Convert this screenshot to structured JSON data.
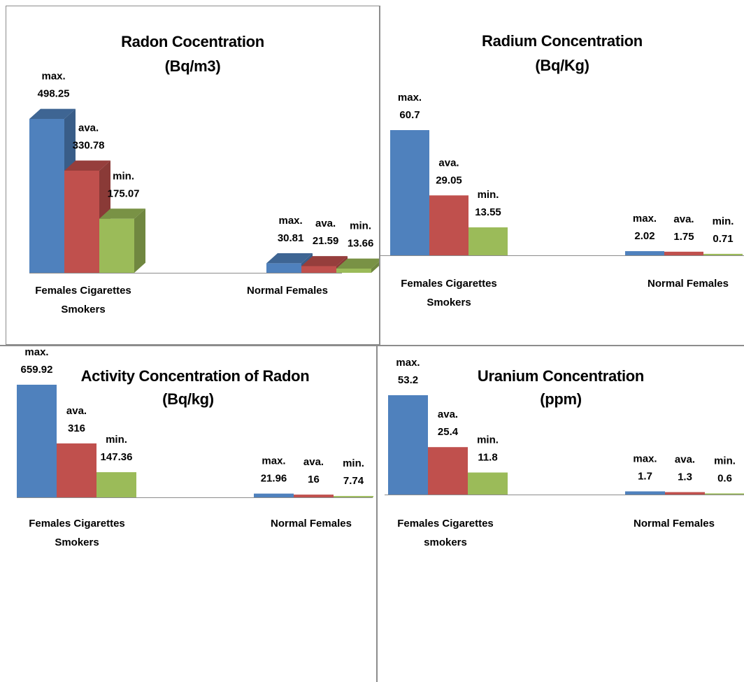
{
  "colors": {
    "max": "#4f81bd",
    "ava": "#c0504d",
    "min": "#9bbb59"
  },
  "chart_data": [
    {
      "type": "bar",
      "title": "Radon Cocentration",
      "subtitle": "(Bq/m3)",
      "categories": [
        "Females Cigarettes Smokers",
        "Normal Females"
      ],
      "category_lines": [
        [
          "Females Cigarettes",
          "Smokers"
        ],
        [
          "Normal Females"
        ]
      ],
      "series": [
        {
          "label": "max.",
          "values": [
            498.25,
            30.81
          ]
        },
        {
          "label": "ava.",
          "values": [
            330.78,
            21.59
          ]
        },
        {
          "label": "min.",
          "values": [
            175.07,
            13.66
          ]
        }
      ]
    },
    {
      "type": "bar",
      "title": "Radium Concentration",
      "subtitle": "(Bq/Kg)",
      "categories": [
        "Females Cigarettes Smokers",
        "Normal Females"
      ],
      "category_lines": [
        [
          "Females Cigarettes",
          "Smokers"
        ],
        [
          "Normal Females"
        ]
      ],
      "series": [
        {
          "label": "max.",
          "values": [
            60.7,
            2.02
          ]
        },
        {
          "label": "ava.",
          "values": [
            29.05,
            1.75
          ]
        },
        {
          "label": "min.",
          "values": [
            13.55,
            0.71
          ]
        }
      ]
    },
    {
      "type": "bar",
      "title": "Activity Concentration of Radon",
      "subtitle": "(Bq/kg)",
      "categories": [
        "Females Cigarettes Smokers",
        "Normal Females"
      ],
      "category_lines": [
        [
          "Females Cigarettes",
          "Smokers"
        ],
        [
          "Normal Females"
        ]
      ],
      "series": [
        {
          "label": "max.",
          "values": [
            659.92,
            21.96
          ]
        },
        {
          "label": "ava.",
          "values": [
            316,
            16
          ]
        },
        {
          "label": "min.",
          "values": [
            147.36,
            7.74
          ]
        }
      ]
    },
    {
      "type": "bar",
      "title": "Uranium Concentration",
      "subtitle": "(ppm)",
      "categories": [
        "Females Cigarettes smokers",
        "Normal Females"
      ],
      "category_lines": [
        [
          "Females Cigarettes",
          "smokers"
        ],
        [
          "Normal Females"
        ]
      ],
      "series": [
        {
          "label": "max.",
          "values": [
            53.2,
            1.7
          ]
        },
        {
          "label": "ava.",
          "values": [
            25.4,
            1.3
          ]
        },
        {
          "label": "min.",
          "values": [
            11.8,
            0.6
          ]
        }
      ]
    }
  ]
}
